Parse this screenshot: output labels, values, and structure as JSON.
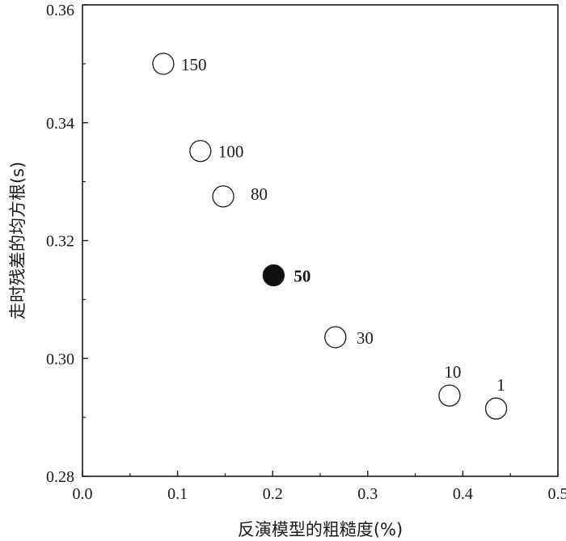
{
  "chart_data": {
    "type": "scatter",
    "xlabel": "反演模型的粗糙度(%)",
    "ylabel": "走时残差的均方根(s)",
    "xlim": [
      0.0,
      0.5
    ],
    "ylim": [
      0.28,
      0.36
    ],
    "x_ticks": [
      "0.0",
      "0.1",
      "0.2",
      "0.3",
      "0.4",
      "0.5"
    ],
    "y_ticks": [
      "0.28",
      "0.30",
      "0.32",
      "0.34",
      "0.36"
    ],
    "grid": false,
    "points": [
      {
        "x": 0.085,
        "y": 0.35,
        "label": "150",
        "filled": false
      },
      {
        "x": 0.124,
        "y": 0.3352,
        "label": "100",
        "filled": false
      },
      {
        "x": 0.148,
        "y": 0.3275,
        "label": "80",
        "filled": false
      },
      {
        "x": 0.201,
        "y": 0.3141,
        "label": "50",
        "filled": true
      },
      {
        "x": 0.266,
        "y": 0.3036,
        "label": "30",
        "filled": false
      },
      {
        "x": 0.386,
        "y": 0.2937,
        "label": "10",
        "filled": false
      },
      {
        "x": 0.435,
        "y": 0.2915,
        "label": "1",
        "filled": false
      }
    ],
    "colors": {
      "axis": "#1a1a1a",
      "marker_fill_open": "#ffffff",
      "marker_fill_selected": "#111111"
    }
  }
}
